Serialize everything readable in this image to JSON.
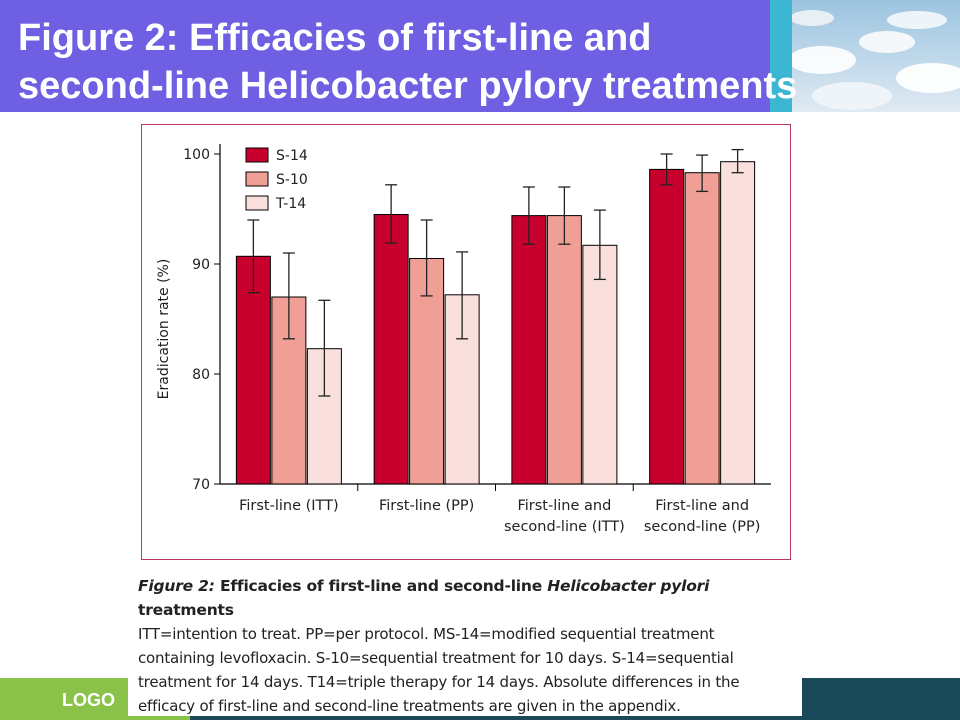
{
  "slide": {
    "title": "Figure 2: Efficacies of first-line and\nsecond-line Helicobacter pylory treatments",
    "logo": "LOGO"
  },
  "caption": {
    "title_prefix": "Figure 2: ",
    "title_main": "Efficacies of first-line and second-line ",
    "title_italic": "Helicobacter pylori",
    "title_suffix": " treatments",
    "line1": "ITT=intention to treat. PP=per protocol. MS-14=modified sequential treatment",
    "line2": "containing levofloxacin. S-10=sequential treatment for 10 days. S-14=sequential",
    "line3": "treatment for 14 days. T14=triple therapy for 14 days. Absolute differences in the",
    "line4": "efficacy of first-line and second-line treatments are given in the appendix."
  },
  "colors": {
    "S-14": "#c8002e",
    "S-10": "#ef9f95",
    "T-14": "#f9e0dc"
  },
  "chart_data": {
    "type": "bar",
    "categories": [
      [
        "First-line (ITT)"
      ],
      [
        "First-line (PP)"
      ],
      [
        "First-line and",
        "second-line (ITT)"
      ],
      [
        "First-line and",
        "second-line (PP)"
      ]
    ],
    "series": [
      {
        "name": "S-14",
        "values": [
          90.7,
          94.5,
          94.4,
          98.6
        ],
        "err_low": [
          87.4,
          91.9,
          91.8,
          97.2
        ],
        "err_high": [
          94.0,
          97.2,
          97.0,
          100.0
        ]
      },
      {
        "name": "S-10",
        "values": [
          87.0,
          90.5,
          94.4,
          98.3
        ],
        "err_low": [
          83.2,
          87.1,
          91.8,
          96.6
        ],
        "err_high": [
          91.0,
          94.0,
          97.0,
          99.9
        ]
      },
      {
        "name": "T-14",
        "values": [
          82.3,
          87.2,
          91.7,
          99.3
        ],
        "err_low": [
          78.0,
          83.2,
          88.6,
          98.3
        ],
        "err_high": [
          86.7,
          91.1,
          94.9,
          100.4
        ]
      }
    ],
    "ylabel": "Eradication rate (%)",
    "xlabel": "",
    "ylim": [
      70,
      100
    ],
    "yticks": [
      70,
      80,
      90,
      100
    ],
    "legend_position": "top-left",
    "grid": false
  }
}
